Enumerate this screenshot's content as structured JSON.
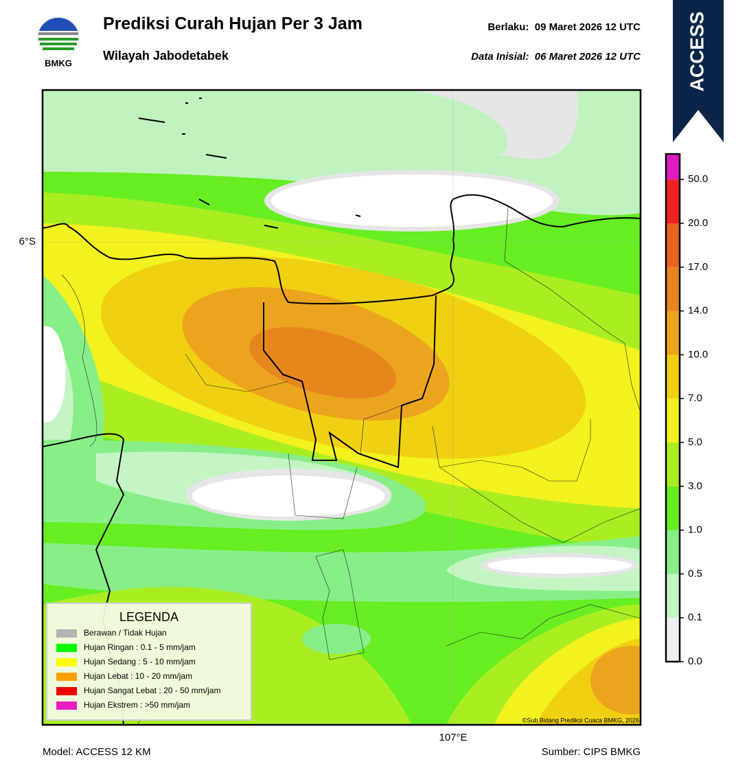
{
  "header": {
    "logo_text": "BMKG",
    "title": "Prediksi Curah Hujan Per 3 Jam",
    "subtitle": "Wilayah Jabodetabek",
    "valid": "Berlaku:  09 Maret 2026 12 UTC",
    "init": "Data Inisial:  06 Maret 2026 12 UTC",
    "badge": "ACCESS"
  },
  "map": {
    "lat_label": "6°S",
    "lon_label": "107°E",
    "copyright": "©Sub Bidang Prediksi Cuaca BMKG, 2026"
  },
  "legend": {
    "title": "LEGENDA",
    "items": [
      {
        "label": "Berawan / Tidak Hujan",
        "color": "#b4b4b4"
      },
      {
        "label": "Hujan Ringan : 0.1 - 5 mm/jam",
        "color": "#00ff00"
      },
      {
        "label": "Hujan Sedang : 5 - 10 mm/jam",
        "color": "#ffff00"
      },
      {
        "label": "Hujan Lebat : 10 - 20 mm/jam",
        "color": "#ffa000"
      },
      {
        "label": "Hujan Sangat Lebat : 20 - 50 mm/jam",
        "color": "#ee0000"
      },
      {
        "label": "Hujan Ekstrem : >50 mm/jam",
        "color": "#e81cc0"
      }
    ]
  },
  "colorbar": {
    "ticks": [
      {
        "value": 0,
        "label": "0.0"
      },
      {
        "value": 0.1,
        "label": "0.1"
      },
      {
        "value": 0.5,
        "label": "0.5"
      },
      {
        "value": 1,
        "label": "1.0"
      },
      {
        "value": 3,
        "label": "3.0"
      },
      {
        "value": 5,
        "label": "5.0"
      },
      {
        "value": 7,
        "label": "7.0"
      },
      {
        "value": 10,
        "label": "10.0"
      },
      {
        "value": 14,
        "label": "14.0"
      },
      {
        "value": 17,
        "label": "17.0"
      },
      {
        "value": 20,
        "label": "20.0"
      },
      {
        "value": 50,
        "label": "50.0"
      }
    ],
    "colors": [
      "#efefef",
      "#c4f4c4",
      "#88ef88",
      "#66ee22",
      "#aaee22",
      "#f2f21e",
      "#f0d012",
      "#eca41e",
      "#e8861e",
      "#e86420",
      "#ee2222",
      "#e01cc0"
    ]
  },
  "footer": {
    "model": "Model: ACCESS 12 KM",
    "source": "Sumber: CIPS BMKG"
  }
}
